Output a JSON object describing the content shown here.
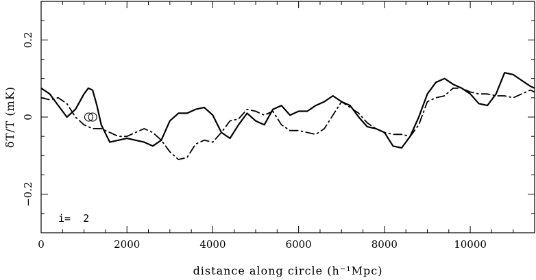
{
  "chart_data": {
    "type": "line",
    "xlabel": "distance along circle (h⁻¹Mpc)",
    "ylabel": "δT/T (mK)",
    "xlim": [
      0,
      11500
    ],
    "ylim": [
      -0.3,
      0.3
    ],
    "x_ticks": [
      0,
      2000,
      4000,
      6000,
      8000,
      10000
    ],
    "x_tick_labels": [
      "0",
      "2000",
      "4000",
      "6000",
      "8000",
      "10000"
    ],
    "y_ticks": [
      -0.2,
      0,
      0.2
    ],
    "y_tick_labels": [
      "−0.2",
      "0",
      "0.2"
    ],
    "annotation": "i=  2",
    "markers": [
      {
        "x": 1110,
        "y": 0.0
      },
      {
        "x": 1200,
        "y": 0.0
      }
    ],
    "series": [
      {
        "style": "solid",
        "x": [
          0,
          200,
          400,
          600,
          800,
          1000,
          1100,
          1200,
          1300,
          1400,
          1600,
          1800,
          2000,
          2200,
          2400,
          2600,
          2800,
          3000,
          3200,
          3400,
          3600,
          3800,
          4000,
          4200,
          4400,
          4600,
          4800,
          5000,
          5200,
          5400,
          5600,
          5800,
          6000,
          6200,
          6400,
          6600,
          6800,
          7000,
          7200,
          7400,
          7600,
          7800,
          8000,
          8200,
          8400,
          8600,
          8800,
          9000,
          9200,
          9400,
          9600,
          9800,
          10000,
          10200,
          10400,
          10600,
          10800,
          11000,
          11200,
          11400,
          11500
        ],
        "y": [
          0.075,
          0.06,
          0.03,
          0.0,
          0.02,
          0.06,
          0.075,
          0.07,
          0.03,
          -0.02,
          -0.065,
          -0.06,
          -0.055,
          -0.06,
          -0.065,
          -0.075,
          -0.06,
          -0.01,
          0.01,
          0.01,
          0.02,
          0.025,
          0.005,
          -0.04,
          -0.055,
          -0.02,
          0.01,
          -0.01,
          -0.02,
          0.02,
          0.03,
          0.005,
          0.015,
          0.015,
          0.03,
          0.04,
          0.055,
          0.04,
          0.03,
          0.0,
          -0.025,
          -0.03,
          -0.04,
          -0.075,
          -0.08,
          -0.05,
          0.0,
          0.06,
          0.09,
          0.1,
          0.085,
          0.075,
          0.06,
          0.035,
          0.03,
          0.06,
          0.115,
          0.11,
          0.095,
          0.08,
          0.075
        ]
      },
      {
        "style": "dash-dot",
        "x": [
          0,
          200,
          400,
          600,
          800,
          1000,
          1200,
          1400,
          1600,
          1800,
          2000,
          2200,
          2400,
          2600,
          2800,
          3000,
          3200,
          3400,
          3600,
          3800,
          4000,
          4200,
          4400,
          4600,
          4800,
          5000,
          5200,
          5400,
          5600,
          5800,
          6000,
          6200,
          6400,
          6600,
          6800,
          7000,
          7200,
          7400,
          7600,
          7800,
          8000,
          8200,
          8400,
          8600,
          8800,
          9000,
          9200,
          9400,
          9600,
          9800,
          10000,
          10200,
          10400,
          10600,
          10800,
          11000,
          11200,
          11400,
          11500
        ],
        "y": [
          0.05,
          0.045,
          0.05,
          0.035,
          0.0,
          -0.02,
          -0.03,
          -0.03,
          -0.04,
          -0.05,
          -0.05,
          -0.04,
          -0.03,
          -0.04,
          -0.06,
          -0.09,
          -0.11,
          -0.105,
          -0.07,
          -0.06,
          -0.065,
          -0.04,
          -0.01,
          -0.005,
          0.02,
          0.015,
          0.005,
          0.015,
          -0.02,
          -0.035,
          -0.035,
          -0.04,
          -0.045,
          -0.03,
          0.005,
          0.04,
          0.025,
          0.01,
          -0.015,
          -0.03,
          -0.04,
          -0.045,
          -0.045,
          -0.05,
          -0.02,
          0.04,
          0.05,
          0.055,
          0.075,
          0.075,
          0.065,
          0.06,
          0.06,
          0.055,
          0.055,
          0.05,
          0.06,
          0.07,
          0.065
        ]
      }
    ]
  }
}
